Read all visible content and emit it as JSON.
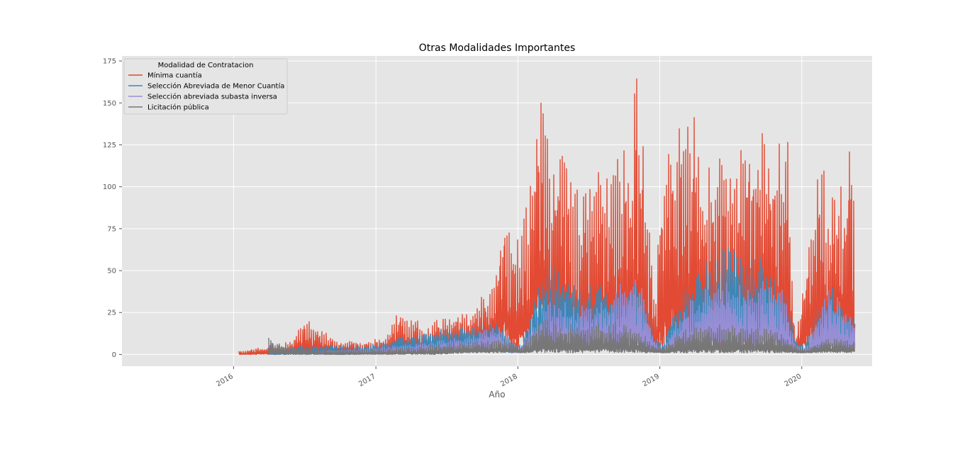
{
  "chart_data": {
    "type": "line",
    "title": "Otras Modalidades Importantes",
    "xlabel": "Año",
    "ylabel": "",
    "xlim": [
      "2015-03-20",
      "2020-06-30"
    ],
    "ylim": [
      -7,
      178
    ],
    "grid": true,
    "yticks": [
      0,
      25,
      50,
      75,
      100,
      125,
      150,
      175
    ],
    "yticklabels": [
      "0",
      "25",
      "50",
      "75",
      "100",
      "125",
      "150",
      "175"
    ],
    "xticks": [
      "2016-01-01",
      "2017-01-01",
      "2018-01-01",
      "2019-01-01",
      "2020-01-01"
    ],
    "xticklabels": [
      "2016",
      "2017",
      "2018",
      "2019",
      "2020"
    ],
    "legend": {
      "title": "Modalidad de Contratacion",
      "placement": "upper-left"
    },
    "series": [
      {
        "name": "Mínima cuantía",
        "color": "#e24a33",
        "envelope": {
          "x": [
            "2016-01-15",
            "2016-04-01",
            "2016-06-01",
            "2016-07-01",
            "2016-08-15",
            "2016-10-01",
            "2016-12-01",
            "2017-01-20",
            "2017-03-01",
            "2017-04-01",
            "2017-05-15",
            "2017-07-01",
            "2017-08-01",
            "2017-09-01",
            "2017-10-01",
            "2017-10-20",
            "2017-11-01",
            "2017-11-20",
            "2017-12-01",
            "2017-12-15",
            "2018-01-10",
            "2018-02-01",
            "2018-02-15",
            "2018-03-01",
            "2018-03-15",
            "2018-04-01",
            "2018-05-01",
            "2018-05-15",
            "2018-06-15",
            "2018-07-15",
            "2018-08-15",
            "2018-09-15",
            "2018-10-15",
            "2018-11-01",
            "2018-11-10",
            "2018-11-20",
            "2018-12-01",
            "2018-12-20",
            "2019-01-10",
            "2019-02-01",
            "2019-02-15",
            "2019-03-15",
            "2019-04-15",
            "2019-05-01",
            "2019-05-15",
            "2019-06-15",
            "2019-07-15",
            "2019-08-15",
            "2019-09-15",
            "2019-10-15",
            "2019-10-25",
            "2019-11-10",
            "2019-11-25",
            "2019-12-15",
            "2020-01-05",
            "2020-01-20",
            "2020-02-01",
            "2020-02-15",
            "2020-03-01",
            "2020-03-15",
            "2020-04-01",
            "2020-04-15",
            "2020-05-01",
            "2020-05-15"
          ],
          "max": [
            2,
            5,
            8,
            23,
            15,
            8,
            8,
            10,
            26,
            22,
            18,
            24,
            28,
            22,
            35,
            40,
            50,
            80,
            93,
            70,
            75,
            100,
            120,
            169,
            142,
            110,
            130,
            110,
            95,
            110,
            115,
            125,
            122,
            174,
            130,
            131,
            100,
            30,
            135,
            148,
            140,
            152,
            137,
            120,
            122,
            115,
            110,
            137,
            133,
            134,
            151,
            120,
            145,
            10,
            40,
            75,
            96,
            122,
            108,
            100,
            110,
            98,
            126,
            125
          ],
          "min": [
            0,
            0,
            0,
            0,
            1,
            1,
            1,
            0,
            0,
            1,
            2,
            3,
            4,
            4,
            5,
            6,
            6,
            8,
            8,
            1,
            2,
            4,
            20,
            15,
            12,
            10,
            8,
            5,
            5,
            5,
            5,
            5,
            8,
            10,
            5,
            4,
            2,
            1,
            2,
            8,
            10,
            8,
            5,
            5,
            4,
            4,
            4,
            5,
            5,
            6,
            5,
            4,
            2,
            1,
            2,
            5,
            5,
            5,
            5,
            5,
            3,
            3,
            3,
            3
          ]
        }
      },
      {
        "name": "Selección Abreviada de Menor Cuantía",
        "color": "#348abd",
        "envelope": {
          "x": [
            "2016-04-01",
            "2016-08-01",
            "2016-12-01",
            "2017-03-01",
            "2017-05-01",
            "2017-08-01",
            "2017-11-01",
            "2017-12-15",
            "2018-01-10",
            "2018-02-15",
            "2018-03-15",
            "2018-05-15",
            "2018-07-15",
            "2018-09-15",
            "2018-11-01",
            "2018-12-20",
            "2019-01-10",
            "2019-02-15",
            "2019-03-15",
            "2019-05-01",
            "2019-06-15",
            "2019-08-15",
            "2019-09-15",
            "2019-10-15",
            "2019-11-15",
            "2019-12-15",
            "2020-01-10",
            "2020-02-15",
            "2020-03-15",
            "2020-04-15",
            "2020-05-15"
          ],
          "max": [
            3,
            6,
            5,
            10,
            15,
            16,
            20,
            10,
            5,
            38,
            56,
            49,
            40,
            42,
            48,
            10,
            5,
            35,
            42,
            57,
            66,
            60,
            58,
            52,
            45,
            8,
            5,
            30,
            42,
            30,
            25
          ],
          "min": [
            0,
            0,
            0,
            1,
            2,
            2,
            3,
            1,
            1,
            2,
            5,
            5,
            4,
            4,
            4,
            1,
            1,
            3,
            5,
            5,
            5,
            5,
            5,
            5,
            4,
            1,
            1,
            2,
            3,
            3,
            3
          ]
        }
      },
      {
        "name": "Selección abreviada subasta inversa",
        "color": "#988ed5",
        "envelope": {
          "x": [
            "2016-08-01",
            "2017-01-01",
            "2017-06-01",
            "2017-09-01",
            "2017-11-15",
            "2017-12-15",
            "2018-01-10",
            "2018-02-15",
            "2018-04-01",
            "2018-06-15",
            "2018-09-01",
            "2018-11-01",
            "2018-12-20",
            "2019-01-10",
            "2019-03-01",
            "2019-05-01",
            "2019-07-01",
            "2019-09-01",
            "2019-10-15",
            "2019-11-15",
            "2019-12-15",
            "2020-01-10",
            "2020-02-15",
            "2020-03-15",
            "2020-04-15",
            "2020-05-15"
          ],
          "max": [
            2,
            4,
            8,
            12,
            17,
            8,
            3,
            25,
            32,
            30,
            35,
            55,
            8,
            3,
            30,
            40,
            45,
            42,
            45,
            40,
            6,
            3,
            28,
            40,
            30,
            22
          ],
          "min": [
            0,
            0,
            1,
            1,
            2,
            1,
            1,
            2,
            4,
            3,
            3,
            4,
            1,
            1,
            3,
            4,
            4,
            4,
            4,
            4,
            1,
            1,
            2,
            3,
            3,
            3
          ]
        }
      },
      {
        "name": "Licitación pública",
        "color": "#777777",
        "envelope": {
          "x": [
            "2016-04-01",
            "2016-06-01",
            "2016-09-01",
            "2016-12-01",
            "2017-03-01",
            "2017-06-01",
            "2017-09-01",
            "2017-12-01",
            "2018-01-10",
            "2018-03-01",
            "2018-06-01",
            "2018-09-01",
            "2018-11-01",
            "2018-12-20",
            "2019-01-10",
            "2019-03-01",
            "2019-06-01",
            "2019-09-01",
            "2019-11-01",
            "2019-12-15",
            "2020-01-10",
            "2020-03-01",
            "2020-05-15"
          ],
          "max": [
            10,
            4,
            3,
            3,
            4,
            6,
            8,
            9,
            4,
            22,
            17,
            20,
            16,
            6,
            4,
            15,
            18,
            16,
            14,
            5,
            3,
            10,
            8
          ],
          "min": [
            0,
            0,
            0,
            0,
            0,
            0,
            1,
            1,
            1,
            1,
            1,
            1,
            1,
            1,
            1,
            1,
            1,
            1,
            1,
            1,
            1,
            1,
            1
          ]
        }
      }
    ]
  }
}
